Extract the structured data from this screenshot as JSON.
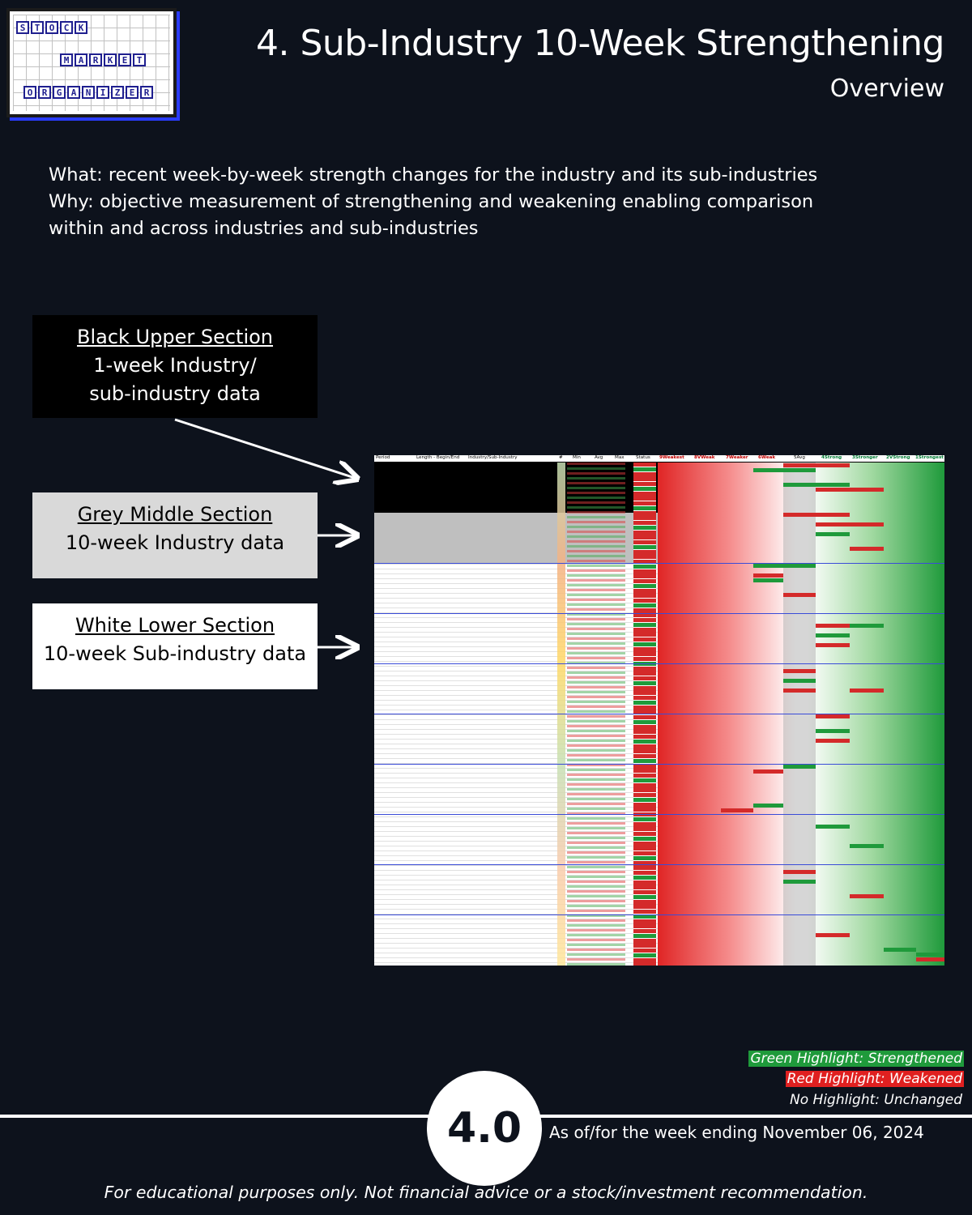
{
  "logo": {
    "row1": [
      "S",
      "T",
      "O",
      "C",
      "K"
    ],
    "row2": [
      "M",
      "A",
      "R",
      "K",
      "E",
      "T"
    ],
    "row3": [
      "O",
      "R",
      "G",
      "A",
      "N",
      "I",
      "Z",
      "E",
      "R"
    ]
  },
  "header": {
    "title": "4. Sub-Industry 10-Week Strengthening",
    "subtitle": "Overview"
  },
  "description": {
    "line1": "What: recent week-by-week strength changes for the industry and its sub-industries",
    "line2": "Why: objective measurement of strengthening and weakening enabling comparison",
    "line3": "within and across industries and sub-industries"
  },
  "sections": [
    {
      "heading": "Black Upper Section",
      "line1": "1-week Industry/",
      "line2": "sub-industry data"
    },
    {
      "heading": "Grey Middle Section",
      "line1": "10-week Industry data",
      "line2": ""
    },
    {
      "heading": "White Lower Section",
      "line1": "10-week Sub-industry data",
      "line2": ""
    }
  ],
  "sheet_headers": {
    "period": "Period",
    "length": "Length - Begin/End",
    "industry": "Industry/Sub-Industry",
    "num": "#",
    "min": "Min",
    "avg": "Avg",
    "max": "Max",
    "status": "Status",
    "h1": "9Weakest",
    "h2": "8VWeak",
    "h3": "7Weaker",
    "h4": "6Weak",
    "h5": "5Avg",
    "h6": "4Strong",
    "h7": "3Stronger",
    "h8": "2VStrong",
    "h9": "1Strongest"
  },
  "legend": {
    "green": "Green Highlight: Strengthened",
    "red": "Red Highlight: Weakened",
    "none": "No Highlight: Unchanged"
  },
  "badge": "4.0",
  "as_of": "As of/for the week ending November 06, 2024",
  "footer": "For educational purposes only. Not financial advice or a stock/investment recommendation.",
  "colors": {
    "background": "#0d121c",
    "green": "#1f9a3b",
    "red": "#e02020",
    "logo_accent": "#2a3cff"
  }
}
